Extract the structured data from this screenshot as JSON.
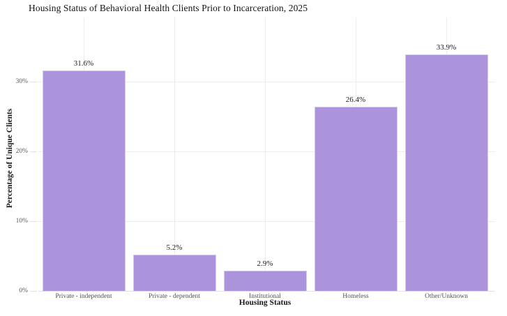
{
  "chart_data": {
    "type": "bar",
    "title": "Housing Status of Behavioral Health Clients Prior to Incarceration, 2025",
    "xlabel": "Housing Status",
    "ylabel": "Percentage of Unique Clients",
    "categories": [
      "Private - independent",
      "Private - dependent",
      "Institutional",
      "Homeless",
      "Other/Unknown"
    ],
    "values": [
      31.6,
      5.2,
      2.9,
      26.4,
      33.9
    ],
    "bar_labels": [
      "31.6%",
      "5.2%",
      "2.9%",
      "26.4%",
      "33.9%"
    ],
    "ylim": [
      0,
      39.2
    ],
    "yticks": [
      {
        "value": 0,
        "label": "0%"
      },
      {
        "value": 10,
        "label": "10%"
      },
      {
        "value": 20,
        "label": "20%"
      },
      {
        "value": 30,
        "label": "30%"
      }
    ],
    "grid": "on",
    "legend": "none",
    "colors": {
      "bar_fill": "#ab94db",
      "bar_border": "#d6cbf0",
      "gridline": "#ececec",
      "axis_line": "#e2e2e2",
      "tick_mark": "#e0e0e0",
      "title_text": "#141414",
      "tick_text": "#5a5a5a",
      "category_text": "#525252",
      "label_text": "#1a1a1a",
      "background": "#ffffff"
    }
  }
}
